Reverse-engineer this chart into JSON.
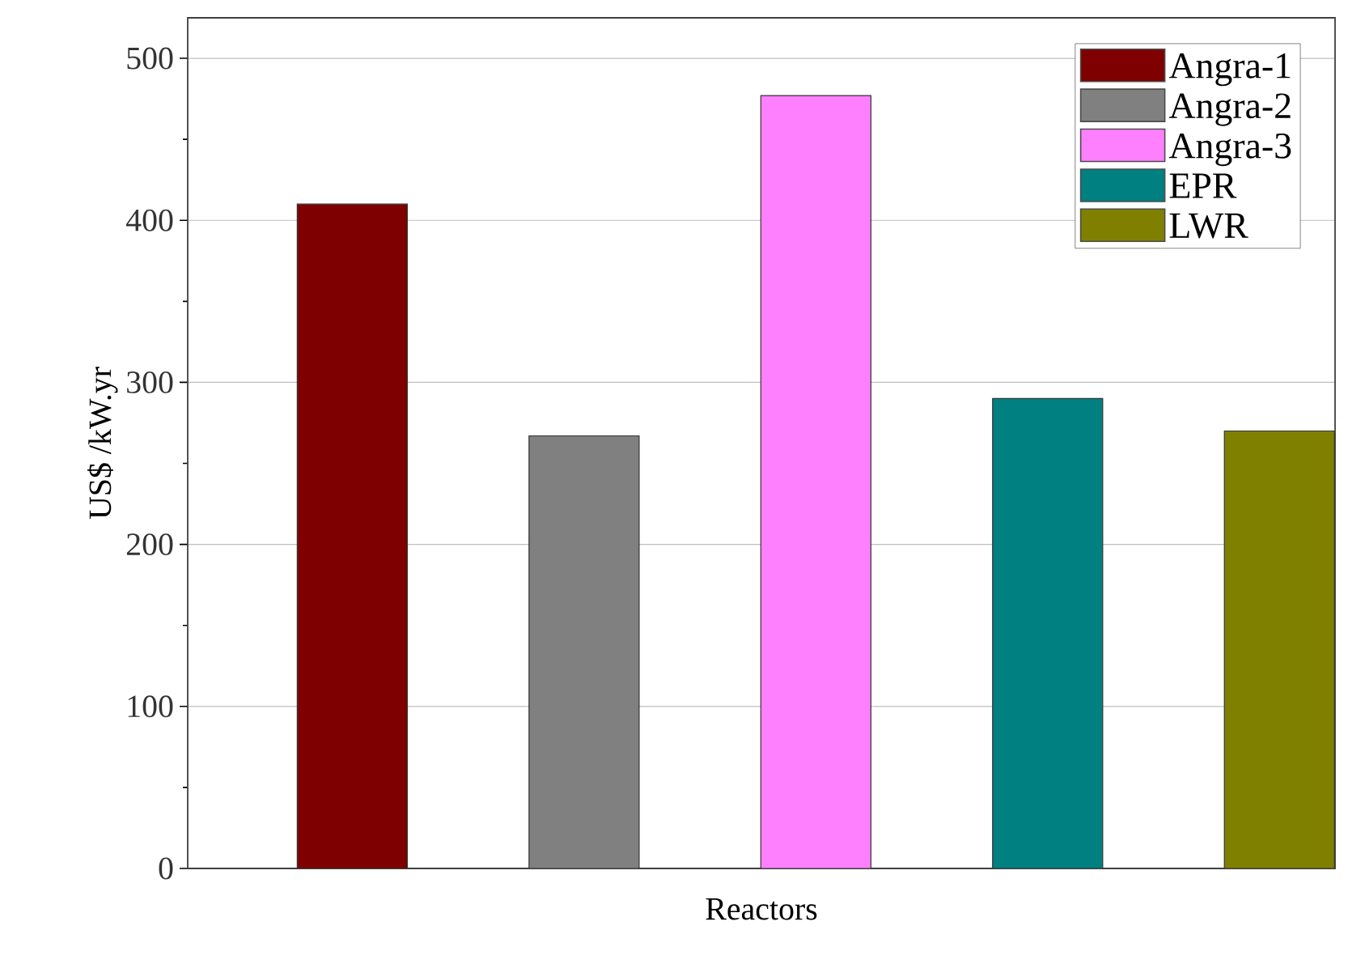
{
  "chart_data": {
    "type": "bar",
    "xlabel": "Reactors",
    "ylabel": "US$ /kW.yr",
    "categories": [
      null,
      null,
      null,
      null,
      null
    ],
    "series": [
      {
        "name": "Angra-1",
        "color": "#7f0000",
        "values": [
          410,
          null,
          null,
          null,
          null
        ]
      },
      {
        "name": "Angra-2",
        "color": "#808080",
        "values": [
          null,
          267,
          null,
          null,
          null
        ]
      },
      {
        "name": "Angra-3",
        "color": "#ff80ff",
        "values": [
          null,
          null,
          477,
          null,
          null
        ]
      },
      {
        "name": "EPR",
        "color": "#008080",
        "values": [
          null,
          null,
          null,
          290,
          null
        ]
      },
      {
        "name": "LWR",
        "color": "#808000",
        "values": [
          null,
          null,
          null,
          null,
          270
        ]
      }
    ],
    "ylim": [
      0,
      525
    ],
    "yticks": [
      0,
      100,
      200,
      300,
      400,
      500
    ],
    "grid": "y",
    "legend": "top right"
  }
}
